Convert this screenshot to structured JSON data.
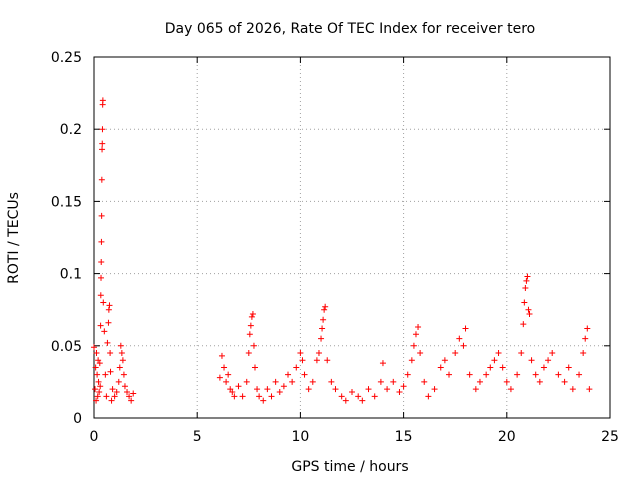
{
  "chart_data": {
    "type": "scatter",
    "title": "Day 065 of 2026, Rate Of TEC Index for receiver tero",
    "xlabel": "GPS time / hours",
    "ylabel": "ROTI / TECUs",
    "xlim": [
      0,
      25
    ],
    "ylim": [
      0,
      0.25
    ],
    "x_ticks": [
      0,
      5,
      10,
      15,
      20,
      25
    ],
    "x_tick_labels": [
      "0",
      "5",
      "10",
      "15",
      "20",
      "25"
    ],
    "y_ticks": [
      0,
      0.05,
      0.1,
      0.15,
      0.2,
      0.25
    ],
    "y_tick_labels": [
      "0",
      "0.05",
      "0.1",
      "0.15",
      "0.2",
      "0.25"
    ],
    "grid": true,
    "marker": "+",
    "marker_color": "#ff0000",
    "series": [
      {
        "name": "ROTI",
        "points": [
          [
            0.0,
            0.049
          ],
          [
            0.05,
            0.02
          ],
          [
            0.08,
            0.035
          ],
          [
            0.1,
            0.012
          ],
          [
            0.12,
            0.045
          ],
          [
            0.15,
            0.03
          ],
          [
            0.18,
            0.015
          ],
          [
            0.2,
            0.04
          ],
          [
            0.22,
            0.025
          ],
          [
            0.25,
            0.018
          ],
          [
            0.28,
            0.038
          ],
          [
            0.3,
            0.022
          ],
          [
            0.32,
            0.064
          ],
          [
            0.33,
            0.085
          ],
          [
            0.34,
            0.097
          ],
          [
            0.35,
            0.108
          ],
          [
            0.36,
            0.122
          ],
          [
            0.37,
            0.14
          ],
          [
            0.38,
            0.165
          ],
          [
            0.39,
            0.186
          ],
          [
            0.4,
            0.19
          ],
          [
            0.41,
            0.2
          ],
          [
            0.42,
            0.217
          ],
          [
            0.43,
            0.22
          ],
          [
            0.45,
            0.08
          ],
          [
            0.5,
            0.06
          ],
          [
            0.55,
            0.03
          ],
          [
            0.6,
            0.015
          ],
          [
            0.65,
            0.052
          ],
          [
            0.7,
            0.066
          ],
          [
            0.72,
            0.075
          ],
          [
            0.75,
            0.078
          ],
          [
            0.78,
            0.045
          ],
          [
            0.8,
            0.032
          ],
          [
            0.85,
            0.012
          ],
          [
            0.9,
            0.02
          ],
          [
            1.0,
            0.015
          ],
          [
            1.1,
            0.018
          ],
          [
            1.2,
            0.025
          ],
          [
            1.25,
            0.035
          ],
          [
            1.3,
            0.05
          ],
          [
            1.35,
            0.045
          ],
          [
            1.4,
            0.04
          ],
          [
            1.45,
            0.03
          ],
          [
            1.5,
            0.022
          ],
          [
            1.6,
            0.018
          ],
          [
            1.7,
            0.015
          ],
          [
            1.8,
            0.012
          ],
          [
            1.9,
            0.017
          ],
          [
            6.1,
            0.028
          ],
          [
            6.2,
            0.043
          ],
          [
            6.3,
            0.035
          ],
          [
            6.4,
            0.025
          ],
          [
            6.5,
            0.03
          ],
          [
            6.6,
            0.02
          ],
          [
            6.7,
            0.018
          ],
          [
            6.8,
            0.015
          ],
          [
            7.0,
            0.022
          ],
          [
            7.2,
            0.015
          ],
          [
            7.4,
            0.025
          ],
          [
            7.5,
            0.045
          ],
          [
            7.55,
            0.058
          ],
          [
            7.6,
            0.064
          ],
          [
            7.65,
            0.07
          ],
          [
            7.7,
            0.072
          ],
          [
            7.75,
            0.05
          ],
          [
            7.8,
            0.035
          ],
          [
            7.9,
            0.02
          ],
          [
            8.0,
            0.015
          ],
          [
            8.2,
            0.012
          ],
          [
            8.4,
            0.02
          ],
          [
            8.6,
            0.015
          ],
          [
            8.8,
            0.025
          ],
          [
            9.0,
            0.018
          ],
          [
            9.2,
            0.022
          ],
          [
            9.4,
            0.03
          ],
          [
            9.6,
            0.025
          ],
          [
            9.8,
            0.035
          ],
          [
            10.0,
            0.045
          ],
          [
            10.1,
            0.04
          ],
          [
            10.2,
            0.03
          ],
          [
            10.4,
            0.02
          ],
          [
            10.6,
            0.025
          ],
          [
            10.8,
            0.04
          ],
          [
            10.9,
            0.045
          ],
          [
            11.0,
            0.055
          ],
          [
            11.05,
            0.062
          ],
          [
            11.1,
            0.068
          ],
          [
            11.15,
            0.075
          ],
          [
            11.2,
            0.077
          ],
          [
            11.3,
            0.04
          ],
          [
            11.5,
            0.025
          ],
          [
            11.7,
            0.02
          ],
          [
            12.0,
            0.015
          ],
          [
            12.2,
            0.012
          ],
          [
            12.5,
            0.018
          ],
          [
            12.8,
            0.015
          ],
          [
            13.0,
            0.012
          ],
          [
            13.3,
            0.02
          ],
          [
            13.6,
            0.015
          ],
          [
            13.9,
            0.025
          ],
          [
            14.0,
            0.038
          ],
          [
            14.2,
            0.02
          ],
          [
            14.5,
            0.025
          ],
          [
            14.8,
            0.018
          ],
          [
            15.0,
            0.022
          ],
          [
            15.2,
            0.03
          ],
          [
            15.4,
            0.04
          ],
          [
            15.5,
            0.05
          ],
          [
            15.6,
            0.058
          ],
          [
            15.7,
            0.063
          ],
          [
            15.8,
            0.045
          ],
          [
            16.0,
            0.025
          ],
          [
            16.2,
            0.015
          ],
          [
            16.5,
            0.02
          ],
          [
            16.8,
            0.035
          ],
          [
            17.0,
            0.04
          ],
          [
            17.2,
            0.03
          ],
          [
            17.5,
            0.045
          ],
          [
            17.7,
            0.055
          ],
          [
            17.9,
            0.05
          ],
          [
            18.0,
            0.062
          ],
          [
            18.2,
            0.03
          ],
          [
            18.5,
            0.02
          ],
          [
            18.7,
            0.025
          ],
          [
            19.0,
            0.03
          ],
          [
            19.2,
            0.035
          ],
          [
            19.4,
            0.04
          ],
          [
            19.6,
            0.045
          ],
          [
            19.8,
            0.035
          ],
          [
            20.0,
            0.025
          ],
          [
            20.2,
            0.02
          ],
          [
            20.5,
            0.03
          ],
          [
            20.7,
            0.045
          ],
          [
            20.8,
            0.065
          ],
          [
            20.85,
            0.08
          ],
          [
            20.9,
            0.09
          ],
          [
            20.95,
            0.095
          ],
          [
            21.0,
            0.098
          ],
          [
            21.05,
            0.075
          ],
          [
            21.1,
            0.072
          ],
          [
            21.2,
            0.04
          ],
          [
            21.4,
            0.03
          ],
          [
            21.6,
            0.025
          ],
          [
            21.8,
            0.035
          ],
          [
            22.0,
            0.04
          ],
          [
            22.2,
            0.045
          ],
          [
            22.5,
            0.03
          ],
          [
            22.8,
            0.025
          ],
          [
            23.0,
            0.035
          ],
          [
            23.2,
            0.02
          ],
          [
            23.5,
            0.03
          ],
          [
            23.7,
            0.045
          ],
          [
            23.8,
            0.055
          ],
          [
            23.9,
            0.062
          ],
          [
            24.0,
            0.02
          ]
        ]
      }
    ]
  }
}
